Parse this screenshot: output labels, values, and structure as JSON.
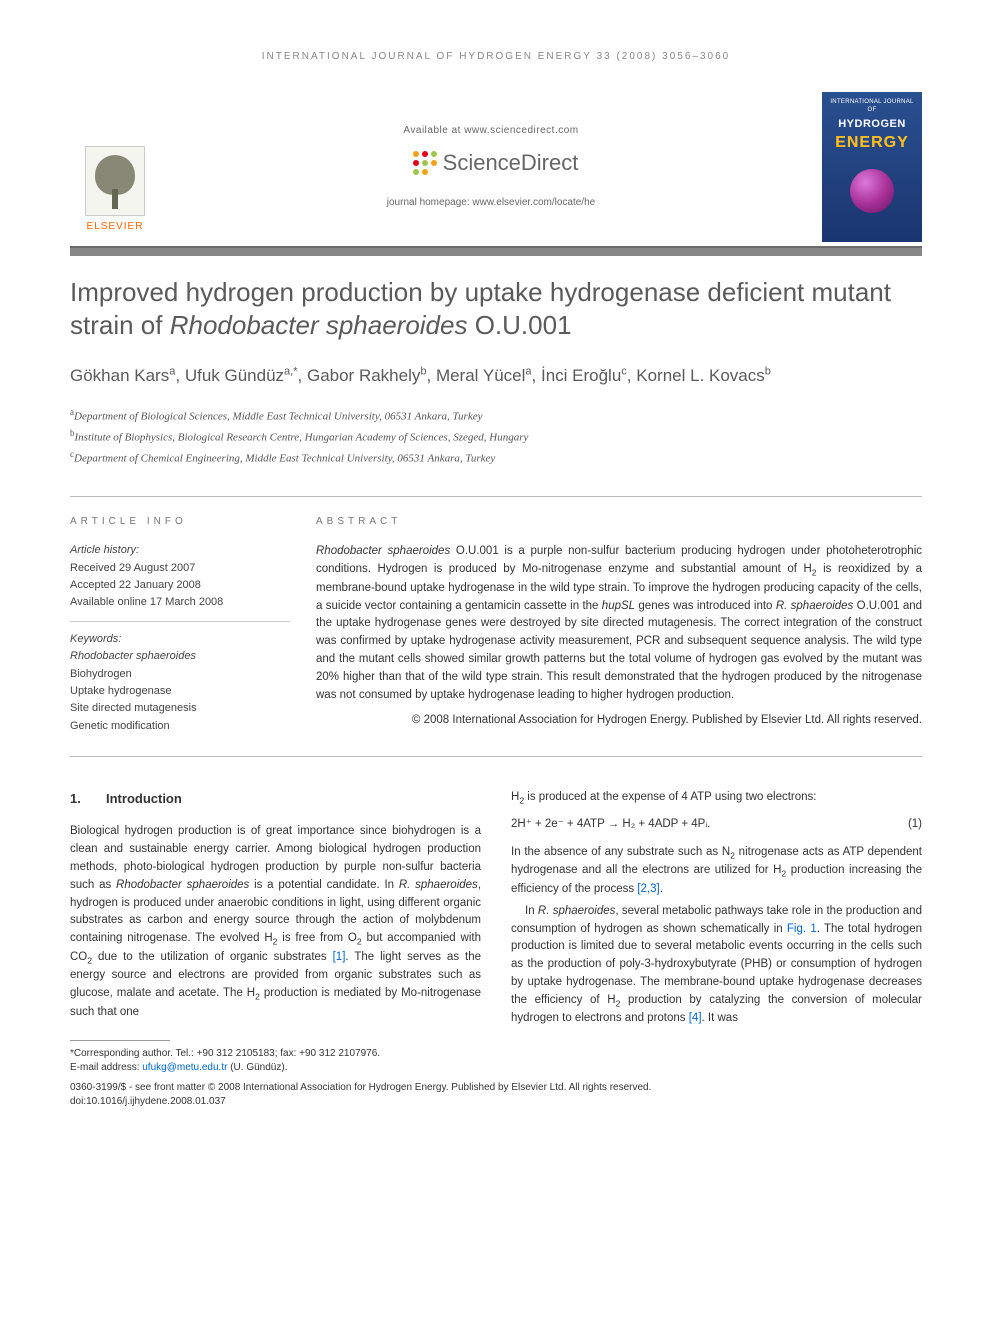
{
  "running_header": "INTERNATIONAL JOURNAL OF HYDROGEN ENERGY 33 (2008) 3056–3060",
  "masthead": {
    "elsevier": "ELSEVIER",
    "available_at": "Available at www.sciencedirect.com",
    "sciencedirect": "ScienceDirect",
    "sd_dot_colors": [
      "#9fc54d",
      "#f6a11a",
      "#e2001a",
      "#9fc54d",
      "#f6a11a",
      "#e2001a",
      "#9fc54d",
      "#f6a11a",
      "#e2001a",
      "#9fc54d",
      "#f6a11a",
      "#e2001a"
    ],
    "homepage": "journal homepage: www.elsevier.com/locate/he",
    "cover": {
      "small": "INTERNATIONAL JOURNAL OF",
      "hydrogen": "HYDROGEN",
      "energy": "ENERGY"
    }
  },
  "title_bar_color": "#878787",
  "title_plain_a": "Improved hydrogen production by uptake hydrogenase deficient mutant strain of ",
  "title_italic": "Rhodobacter sphaeroides",
  "title_plain_b": " O.U.001",
  "authors": [
    {
      "name": "Gökhan Kars",
      "sup": "a"
    },
    {
      "name": "Ufuk Gündüz",
      "sup": "a,*"
    },
    {
      "name": "Gabor Rakhely",
      "sup": "b"
    },
    {
      "name": "Meral Yücel",
      "sup": "a"
    },
    {
      "name": "İnci Eroğlu",
      "sup": "c"
    },
    {
      "name": "Kornel L. Kovacs",
      "sup": "b"
    }
  ],
  "affiliations": [
    {
      "sup": "a",
      "text": "Department of Biological Sciences, Middle East Technical University, 06531 Ankara, Turkey"
    },
    {
      "sup": "b",
      "text": "Institute of Biophysics, Biological Research Centre, Hungarian Academy of Sciences, Szeged, Hungary"
    },
    {
      "sup": "c",
      "text": "Department of Chemical Engineering, Middle East Technical University, 06531 Ankara, Turkey"
    }
  ],
  "info": {
    "heading": "ARTICLE INFO",
    "history_label": "Article history:",
    "received": "Received 29 August 2007",
    "accepted": "Accepted 22 January 2008",
    "online": "Available online 17 March 2008",
    "keywords_label": "Keywords:",
    "keywords": [
      "Rhodobacter sphaeroides",
      "Biohydrogen",
      "Uptake hydrogenase",
      "Site directed mutagenesis",
      "Genetic modification"
    ]
  },
  "abstract": {
    "heading": "ABSTRACT",
    "text_a": "Rhodobacter sphaeroides",
    "text_b": " O.U.001 is a purple non-sulfur bacterium producing hydrogen under photoheterotrophic conditions. Hydrogen is produced by Mo-nitrogenase enzyme and substantial amount of H",
    "text_c": " is reoxidized by a membrane-bound uptake hydrogenase in the wild type strain. To improve the hydrogen producing capacity of the cells, a suicide vector containing a gentamicin cassette in the ",
    "text_d": "hupSL",
    "text_e": " genes was introduced into ",
    "text_f": "R. sphaeroides",
    "text_g": " O.U.001 and the uptake hydrogenase genes were destroyed by site directed mutagenesis. The correct integration of the construct was confirmed by uptake hydrogenase activity measurement, PCR and subsequent sequence analysis. The wild type and the mutant cells showed similar growth patterns but the total volume of hydrogen gas evolved by the mutant was 20% higher than that of the wild type strain. This result demonstrated that the hydrogen produced by the nitrogenase was not consumed by uptake hydrogenase leading to higher hydrogen production.",
    "copyright": "© 2008 International Association for Hydrogen Energy. Published by Elsevier Ltd. All rights reserved."
  },
  "section1": {
    "num": "1.",
    "title": "Introduction"
  },
  "col1": {
    "p1a": "Biological hydrogen production is of great importance since biohydrogen is a clean and sustainable energy carrier. Among biological hydrogen production methods, photo-biological hydrogen production by purple non-sulfur bacteria such as ",
    "p1b": "Rhodobacter sphaeroides",
    "p1c": " is a potential candidate. In ",
    "p1d": "R. sphaeroides",
    "p1e": ", hydrogen is produced under anaerobic conditions in light, using different organic substrates as carbon and energy source through the action of molybdenum containing nitrogenase. The evolved H",
    "p1f": " is free from O",
    "p1g": " but accompanied with CO",
    "p1h": " due to the utilization of organic substrates ",
    "ref1": "[1]",
    "p1i": ". The light serves as the energy source and electrons are provided from organic substrates such as glucose, malate and acetate. The H",
    "p1j": " production is mediated by Mo-nitrogenase such that one"
  },
  "col2": {
    "p1a": "H",
    "p1b": " is produced at the expense of 4 ATP using two electrons:",
    "equation": "2H⁺ + 2e⁻ + 4ATP → H₂ + 4ADP + 4Pᵢ.",
    "eqnum": "(1)",
    "p2a": "In the absence of any substrate such as N",
    "p2b": " nitrogenase acts as ATP dependent hydrogenase and all the electrons are utilized for H",
    "p2c": " production increasing the efficiency of the process ",
    "ref23": "[2,3]",
    "p2d": ".",
    "p3a": "In ",
    "p3b": "R. sphaeroides",
    "p3c": ", several metabolic pathways take role in the production and consumption of hydrogen as shown schematically in ",
    "fig1": "Fig. 1",
    "p3d": ". The total hydrogen production is limited due to several metabolic events occurring in the cells such as the production of poly-3-hydroxybutyrate (PHB) or consumption of hydrogen by uptake hydrogenase. The membrane-bound uptake hydrogenase decreases the efficiency of H",
    "p3e": " production by catalyzing the conversion of molecular hydrogen to electrons and protons ",
    "ref4": "[4]",
    "p3f": ". It was"
  },
  "footnote": {
    "corr": "*Corresponding author. Tel.: +90 312 2105183; fax: +90 312 2107976.",
    "email_label": "E-mail address: ",
    "email": "ufukg@metu.edu.tr",
    "email_name": " (U. Gündüz)."
  },
  "page_footer": {
    "line1": "0360-3199/$ - see front matter © 2008 International Association for Hydrogen Energy. Published by Elsevier Ltd. All rights reserved.",
    "line2": "doi:10.1016/j.ijhydene.2008.01.037"
  },
  "colors": {
    "text": "#333333",
    "muted": "#777777",
    "link": "#0066cc",
    "elsevier_orange": "#ff6600",
    "rule": "#bbbbbb"
  },
  "typography": {
    "title_fontsize_pt": 20,
    "author_fontsize_pt": 13,
    "body_fontsize_pt": 9,
    "info_fontsize_pt": 8
  }
}
